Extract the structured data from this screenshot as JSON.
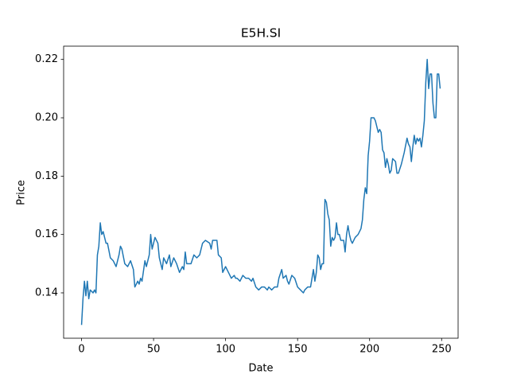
{
  "chart_data": {
    "type": "line",
    "title": "E5H.SI",
    "x_label": "Date",
    "y_label": "Price",
    "x": [
      0,
      1,
      2,
      3,
      4,
      5,
      6,
      8,
      9,
      10,
      11,
      12,
      13,
      14,
      15,
      17,
      18,
      20,
      22,
      24,
      26,
      27,
      28,
      30,
      32,
      34,
      36,
      37,
      39,
      40,
      41,
      42,
      44,
      45,
      47,
      48,
      49,
      51,
      53,
      54,
      56,
      57,
      59,
      61,
      62,
      64,
      66,
      68,
      70,
      71,
      72,
      73,
      76,
      78,
      80,
      82,
      84,
      86,
      89,
      90,
      91,
      94,
      95,
      97,
      98,
      100,
      102,
      104,
      106,
      107,
      108,
      110,
      112,
      114,
      116,
      118,
      119,
      121,
      123,
      125,
      127,
      129,
      130,
      132,
      134,
      136,
      137,
      139,
      140,
      142,
      143,
      144,
      146,
      148,
      150,
      152,
      154,
      155,
      157,
      159,
      160,
      161,
      162,
      163,
      164,
      165,
      166,
      167,
      168,
      169,
      170,
      171,
      172,
      173,
      174,
      175,
      176,
      177,
      178,
      179,
      180,
      182,
      183,
      184,
      185,
      186,
      187,
      188,
      190,
      192,
      194,
      195,
      196,
      197,
      198,
      199,
      200,
      201,
      203,
      204,
      206,
      207,
      208,
      209,
      210,
      211,
      212,
      213,
      214,
      215,
      216,
      218,
      219,
      220,
      222,
      224,
      226,
      227,
      228,
      229,
      230,
      231,
      232,
      233,
      234,
      235,
      236,
      237,
      238,
      239,
      240,
      241,
      242,
      243,
      244,
      245,
      246,
      247,
      248,
      249
    ],
    "series": [
      {
        "name": "E5H.SI",
        "color": "#1f77b4",
        "values": [
          0.129,
          0.138,
          0.144,
          0.139,
          0.144,
          0.138,
          0.141,
          0.14,
          0.141,
          0.14,
          0.153,
          0.156,
          0.164,
          0.16,
          0.161,
          0.157,
          0.157,
          0.152,
          0.151,
          0.149,
          0.153,
          0.156,
          0.155,
          0.15,
          0.149,
          0.151,
          0.148,
          0.142,
          0.144,
          0.143,
          0.145,
          0.144,
          0.151,
          0.149,
          0.153,
          0.16,
          0.155,
          0.159,
          0.157,
          0.152,
          0.148,
          0.152,
          0.15,
          0.153,
          0.149,
          0.152,
          0.15,
          0.147,
          0.149,
          0.148,
          0.154,
          0.15,
          0.15,
          0.153,
          0.152,
          0.153,
          0.157,
          0.158,
          0.157,
          0.155,
          0.158,
          0.158,
          0.153,
          0.152,
          0.147,
          0.149,
          0.147,
          0.145,
          0.146,
          0.145,
          0.145,
          0.144,
          0.146,
          0.145,
          0.145,
          0.144,
          0.145,
          0.142,
          0.141,
          0.142,
          0.142,
          0.141,
          0.142,
          0.141,
          0.142,
          0.142,
          0.145,
          0.148,
          0.145,
          0.146,
          0.144,
          0.143,
          0.146,
          0.145,
          0.142,
          0.141,
          0.14,
          0.141,
          0.142,
          0.142,
          0.145,
          0.148,
          0.144,
          0.147,
          0.153,
          0.152,
          0.148,
          0.15,
          0.15,
          0.172,
          0.171,
          0.167,
          0.165,
          0.156,
          0.159,
          0.158,
          0.159,
          0.164,
          0.16,
          0.16,
          0.158,
          0.158,
          0.154,
          0.16,
          0.163,
          0.16,
          0.158,
          0.157,
          0.159,
          0.16,
          0.162,
          0.165,
          0.172,
          0.176,
          0.174,
          0.187,
          0.192,
          0.2,
          0.2,
          0.199,
          0.195,
          0.196,
          0.195,
          0.189,
          0.188,
          0.183,
          0.186,
          0.184,
          0.181,
          0.182,
          0.186,
          0.185,
          0.181,
          0.181,
          0.184,
          0.188,
          0.193,
          0.191,
          0.19,
          0.185,
          0.19,
          0.194,
          0.191,
          0.193,
          0.192,
          0.193,
          0.19,
          0.194,
          0.199,
          0.212,
          0.22,
          0.21,
          0.215,
          0.215,
          0.205,
          0.2,
          0.2,
          0.215,
          0.215,
          0.21
        ]
      }
    ],
    "xlim": [
      -12.45,
      261.45
    ],
    "xticks": [
      0,
      50,
      100,
      150,
      200,
      250
    ],
    "ylim": [
      0.12445,
      0.22455
    ],
    "yticks": [
      0.14,
      0.16,
      0.18,
      {
        "value": 0.2,
        "label": "0.20"
      },
      0.22
    ],
    "grid": false
  }
}
